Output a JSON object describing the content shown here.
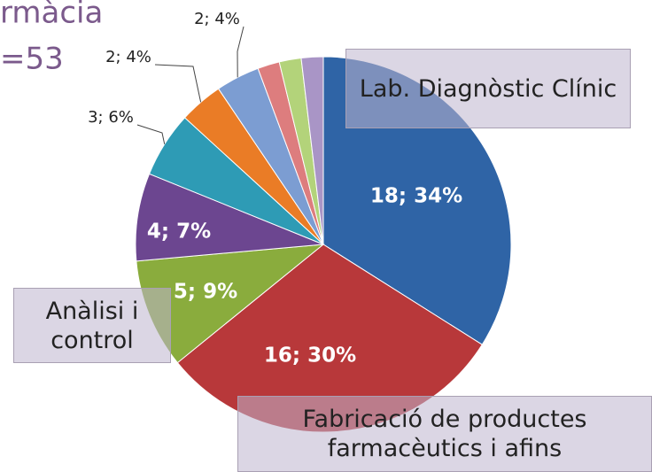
{
  "chart_data": {
    "type": "pie",
    "title": "rmàcia",
    "subtitle": "=53",
    "categories": [
      "Lab. Diagnòstic Clínic",
      "Fabricació de productes farmacèutics i afins",
      "Anàlisi i control",
      null,
      null,
      null,
      null,
      null,
      null,
      null
    ],
    "values": [
      18,
      16,
      5,
      4,
      3,
      2,
      2,
      1,
      1,
      1
    ],
    "value_labels": [
      "18; 34%",
      "16; 30%",
      "5; 9%",
      "4; 7%",
      "3; 6%",
      "2; 4%",
      "2; 4%",
      null,
      null,
      null
    ],
    "colors": [
      "#2f64a6",
      "#b8383a",
      "#8aac3d",
      "#6c4690",
      "#2e9bb5",
      "#ea7c26",
      "#7c9dd2",
      "#dd7d7e",
      "#b3d37a",
      "#a995c6"
    ]
  }
}
